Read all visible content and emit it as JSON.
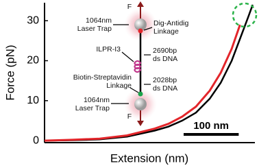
{
  "chart_data": {
    "type": "line",
    "y_label": "Force (pN)",
    "x_label": "Extension (nm)",
    "x": [
      0,
      50,
      100,
      150,
      200,
      225,
      250,
      275,
      300,
      320,
      340,
      355,
      370,
      378
    ],
    "xlim": [
      0,
      382
    ],
    "ylim": [
      -0.5,
      34.5
    ],
    "yticks": [
      0,
      10,
      20,
      30
    ],
    "series": [
      {
        "color": "#000000",
        "values": [
          0,
          0.1,
          0.3,
          1,
          2.5,
          3.5,
          5,
          7,
          10.5,
          14.5,
          20,
          25.5,
          31,
          34
        ]
      },
      {
        "color": "#e3262b",
        "values": [
          0,
          0.2,
          0.5,
          1.3,
          3,
          4.2,
          6,
          8.5,
          12.5,
          17,
          23,
          29,
          null,
          null
        ]
      }
    ],
    "scale_bar": {
      "length": 100,
      "label": "100 nm"
    },
    "annotations": [
      {
        "lines": [
          "1064nm",
          "Laser Trap"
        ]
      },
      {
        "lines": [
          "Dig-Antidig",
          "Linkage"
        ]
      },
      {
        "lines": [
          "ILPR-I3"
        ]
      },
      {
        "lines": [
          "2690bp",
          "ds DNA"
        ]
      },
      {
        "lines": [
          "Biotin-Streptavidin",
          "Linkage"
        ]
      },
      {
        "lines": [
          "2028bp",
          "ds DNA"
        ]
      },
      {
        "lines": [
          "1064nm",
          "Laser Trap"
        ]
      },
      {
        "lines": [
          "F"
        ]
      },
      {
        "lines": [
          "F"
        ]
      }
    ]
  }
}
